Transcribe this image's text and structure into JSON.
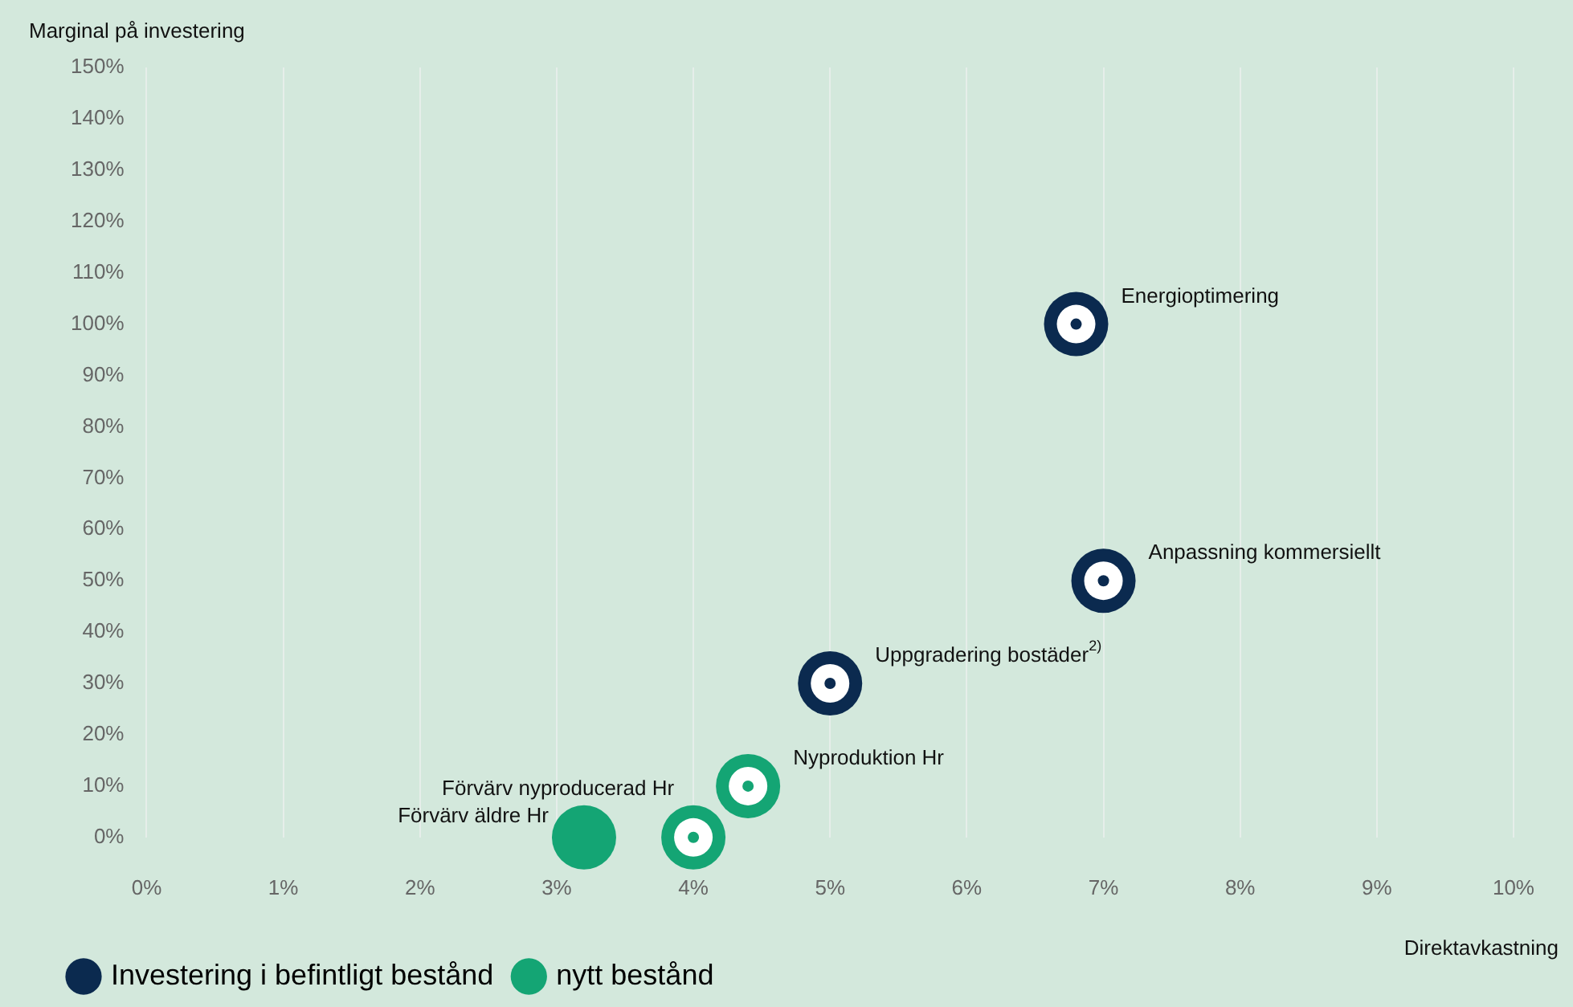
{
  "chart_data": {
    "type": "scatter",
    "ylabel": "Marginal på investering",
    "xlabel": "Direktavkastning",
    "xlim": [
      0,
      10
    ],
    "xticks": [
      {
        "value": 0,
        "label": "0%"
      },
      {
        "value": 1,
        "label": "1%"
      },
      {
        "value": 2,
        "label": "2%"
      },
      {
        "value": 3,
        "label": "3%"
      },
      {
        "value": 4,
        "label": "4%"
      },
      {
        "value": 5,
        "label": "5%"
      },
      {
        "value": 6,
        "label": "6%"
      },
      {
        "value": 7,
        "label": "7%"
      },
      {
        "value": 8,
        "label": "8%"
      },
      {
        "value": 9,
        "label": "9%"
      },
      {
        "value": 10,
        "label": "10%"
      }
    ],
    "ylim": [
      0,
      150
    ],
    "yticks": [
      {
        "value": 0,
        "label": "0%"
      },
      {
        "value": 10,
        "label": "10%"
      },
      {
        "value": 20,
        "label": "20%"
      },
      {
        "value": 30,
        "label": "30%"
      },
      {
        "value": 40,
        "label": "40%"
      },
      {
        "value": 50,
        "label": "50%"
      },
      {
        "value": 60,
        "label": "60%"
      },
      {
        "value": 70,
        "label": "70%"
      },
      {
        "value": 80,
        "label": "80%"
      },
      {
        "value": 90,
        "label": "90%"
      },
      {
        "value": 100,
        "label": "100%"
      },
      {
        "value": 110,
        "label": "110%"
      },
      {
        "value": 120,
        "label": "120%"
      },
      {
        "value": 130,
        "label": "130%"
      },
      {
        "value": 140,
        "label": "140%"
      },
      {
        "value": 150,
        "label": "150%"
      }
    ],
    "grid": "x",
    "legend": "bottom",
    "series": [
      {
        "name": "Investering i befintligt bestånd",
        "color": "#0b2a4f",
        "x": [
          6.8,
          7.0,
          5.0
        ],
        "values": [
          100,
          50,
          30
        ]
      },
      {
        "name": "nytt bestånd",
        "color": "#14a574",
        "x": [
          4.4,
          4.0
        ],
        "values": [
          10,
          0
        ]
      },
      {
        "color": "#14a574",
        "marker": "circle",
        "x": [
          3.2
        ],
        "values": [
          0
        ]
      }
    ],
    "annotations": [
      {
        "text": "Energioptimering",
        "x": 6.8,
        "y": 100
      },
      {
        "text": "Anpassning kommersiellt",
        "x": 7.0,
        "y": 50
      },
      {
        "text": "Uppgradering bostäder$^{2)}$",
        "x": 5.0,
        "y": 30
      },
      {
        "text": "Nyproduktion Hr",
        "x": 4.4,
        "y": 10
      },
      {
        "text": "Förvärv nyproducerad Hr",
        "x": 4.0,
        "y": 0
      },
      {
        "text": "Förvärv äldre Hr",
        "x": 3.2,
        "y": 0
      }
    ]
  }
}
